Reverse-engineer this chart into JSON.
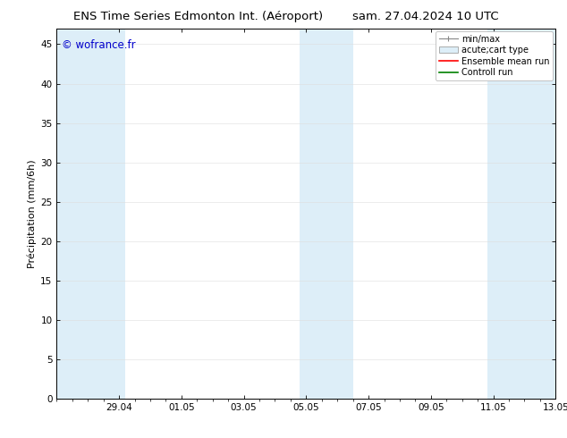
{
  "title_left": "ENS Time Series Edmonton Int. (Aéroport)",
  "title_right": "sam. 27.04.2024 10 UTC",
  "ylabel": "Précipitation (mm/6h)",
  "watermark": "© wofrance.fr",
  "xlim_start": 0,
  "xlim_end": 16,
  "ylim": [
    0,
    47
  ],
  "yticks": [
    0,
    5,
    10,
    15,
    20,
    25,
    30,
    35,
    40,
    45
  ],
  "xtick_labels": [
    "29.04",
    "01.05",
    "03.05",
    "05.05",
    "07.05",
    "09.05",
    "11.05",
    "13.05"
  ],
  "xtick_positions": [
    2,
    4,
    6,
    8,
    10,
    12,
    14,
    16
  ],
  "shaded_bands": [
    {
      "x_start": 0.0,
      "x_end": 2.2,
      "color": "#ddeef8"
    },
    {
      "x_start": 7.8,
      "x_end": 9.5,
      "color": "#ddeef8"
    },
    {
      "x_start": 13.8,
      "x_end": 16.0,
      "color": "#ddeef8"
    }
  ],
  "legend_entries": [
    {
      "label": "min/max",
      "type": "errorbar",
      "color": "#a0a0a0"
    },
    {
      "label": "acute;cart type",
      "type": "box",
      "facecolor": "#ddeef8",
      "edgecolor": "#a0a0a0"
    },
    {
      "label": "Ensemble mean run",
      "type": "line",
      "color": "red"
    },
    {
      "label": "Controll run",
      "type": "line",
      "color": "green"
    }
  ],
  "background_color": "#ffffff",
  "plot_bg_color": "#ffffff",
  "title_fontsize": 9.5,
  "ylabel_fontsize": 8,
  "tick_fontsize": 7.5,
  "watermark_fontsize": 8.5,
  "legend_fontsize": 7
}
